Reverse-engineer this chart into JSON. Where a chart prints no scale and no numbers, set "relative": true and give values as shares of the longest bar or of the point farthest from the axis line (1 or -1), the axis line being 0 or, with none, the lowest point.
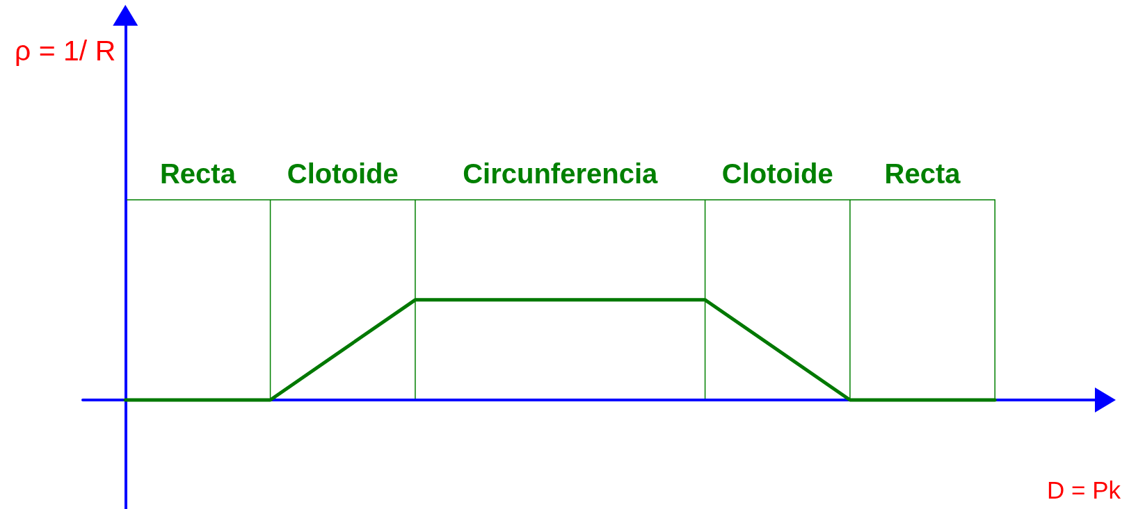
{
  "chart_data": {
    "type": "line",
    "relative": true,
    "xlabel": "D = Pk",
    "categories": [
      null,
      null,
      null,
      null,
      null,
      null,
      null
    ],
    "values": [
      0,
      0,
      1,
      1,
      1,
      0,
      0
    ],
    "color": "#007800",
    "annotations": [
      "ρ = 1/ R",
      "Recta",
      "Clotoide",
      "Circunferencia",
      "Clotoide",
      "Recta"
    ]
  }
}
